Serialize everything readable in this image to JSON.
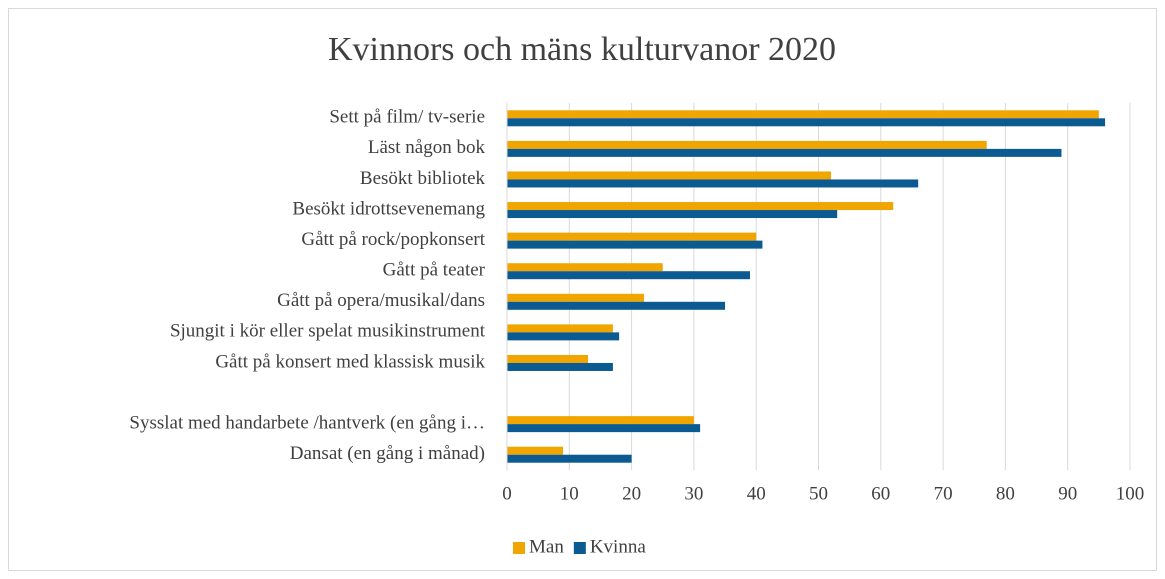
{
  "chart_data": {
    "type": "hbar",
    "title": "Kvinnors och mäns kulturvanor 2020",
    "categories": [
      "Sett på film/ tv-serie",
      "Läst någon bok",
      "Besökt bibliotek",
      "Besökt idrottsevenemang",
      "Gått på rock/popkonsert",
      "Gått på teater",
      "Gått på opera/musikal/dans",
      "Sjungit i kör eller spelat musikinstrument",
      "Gått på konsert med klassisk musik",
      null,
      "Sysslat med handarbete /hantverk (en gång i…",
      "Dansat (en gång i månad)"
    ],
    "series": [
      {
        "name": "Man",
        "color": "#f0a500",
        "values": [
          95,
          77,
          52,
          62,
          40,
          25,
          22,
          17,
          13,
          null,
          30,
          9
        ]
      },
      {
        "name": "Kvinna",
        "color": "#0b5a91",
        "values": [
          96,
          89,
          66,
          53,
          41,
          39,
          35,
          18,
          17,
          null,
          31,
          20
        ]
      }
    ],
    "xlim": [
      0,
      100
    ],
    "xticks": [
      0,
      10,
      20,
      30,
      40,
      50,
      60,
      70,
      80,
      90,
      100
    ],
    "grid": true,
    "legend": "bottom"
  }
}
